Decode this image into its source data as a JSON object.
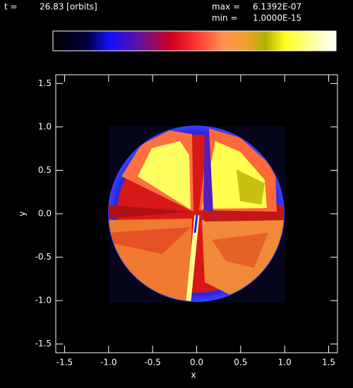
{
  "chart_data": {
    "type": "image",
    "time_label": "t =",
    "time": "26.83 [orbits]",
    "max_label": "max =",
    "max": "6.1392E-07",
    "min_label": "min =",
    "min": "1.0000E-15",
    "x_label": "x",
    "y_label": "y",
    "xlim": [
      -1.6,
      1.6
    ],
    "ylim": [
      -1.6,
      1.6
    ],
    "xticks": [
      -1.5,
      {
        "value": -1,
        "label": "-1.0"
      },
      -0.5,
      {
        "value": 0,
        "label": "0.0"
      },
      0.5,
      {
        "value": 1,
        "label": "1.0"
      },
      1.5
    ],
    "yticks": [
      -1.5,
      {
        "value": -1,
        "label": "-1.0"
      },
      -0.5,
      {
        "value": 0,
        "label": "0.0"
      },
      0.5,
      {
        "value": 1,
        "label": "1.0"
      },
      1.5
    ]
  }
}
